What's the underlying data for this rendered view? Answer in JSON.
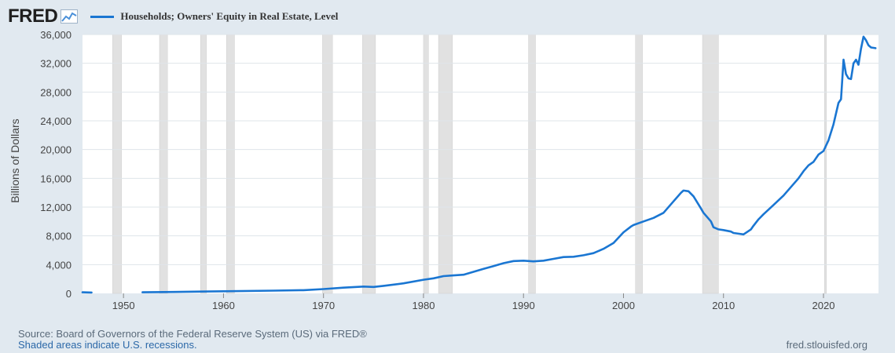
{
  "header": {
    "logo_text": "FRED",
    "logo_icon": "line-graph-icon",
    "series_label": "Households; Owners' Equity in Real Estate, Level"
  },
  "footer": {
    "source": "Source: Board of Governors of the Federal Reserve System (US) via FRED®",
    "recession_note": "Shaded areas indicate U.S. recessions.",
    "url": "fred.stlouisfed.org"
  },
  "colors": {
    "line": "#1a76d2",
    "plot_bg": "#ffffff",
    "recession": "#e1e1e1",
    "grid": "#dfe5ea"
  },
  "chart_data": {
    "type": "line",
    "title": "",
    "xlabel": "",
    "ylabel": "Billions of Dollars",
    "xlim": [
      1945.9,
      2025.5
    ],
    "ylim": [
      0,
      36000
    ],
    "y_ticks": [
      0,
      4000,
      8000,
      12000,
      16000,
      20000,
      24000,
      28000,
      32000,
      36000
    ],
    "y_tick_labels": [
      "0",
      "4,000",
      "8,000",
      "12,000",
      "16,000",
      "20,000",
      "24,000",
      "28,000",
      "32,000",
      "36,000"
    ],
    "x_ticks": [
      1950,
      1960,
      1970,
      1980,
      1990,
      2000,
      2010,
      2020
    ],
    "x_tick_labels": [
      "1950",
      "1960",
      "1970",
      "1980",
      "1990",
      "2000",
      "2010",
      "2020"
    ],
    "grid": true,
    "recessions": [
      [
        1948.9,
        1949.8
      ],
      [
        1953.6,
        1954.4
      ],
      [
        1957.7,
        1958.3
      ],
      [
        1960.3,
        1961.1
      ],
      [
        1969.9,
        1970.9
      ],
      [
        1973.9,
        1975.2
      ],
      [
        1980.0,
        1980.5
      ],
      [
        1981.5,
        1982.9
      ],
      [
        1990.5,
        1991.2
      ],
      [
        2001.2,
        2001.9
      ],
      [
        2007.9,
        2009.5
      ],
      [
        2020.1,
        2020.3
      ]
    ],
    "series": [
      {
        "name": "Households; Owners' Equity in Real Estate, Level",
        "segments": [
          {
            "x": [
              1945.9,
              1946.8
            ],
            "y": [
              150,
              120
            ]
          },
          {
            "x": [
              1951.9,
              1955,
              1960,
              1965,
              1968,
              1970,
              1972,
              1974,
              1975,
              1976,
              1978,
              1980,
              1981,
              1982,
              1983,
              1984,
              1985,
              1986,
              1987,
              1988,
              1989,
              1990,
              1991,
              1992,
              1993,
              1994,
              1995,
              1996,
              1997,
              1998,
              1999,
              2000,
              2000.75,
              2001,
              2002,
              2003,
              2004,
              2005,
              2005.75,
              2006,
              2006.5,
              2007,
              2007.75,
              2008,
              2008.75,
              2009,
              2009.5,
              2010,
              2010.75,
              2011,
              2011.5,
              2012,
              2012.75,
              2013,
              2013.5,
              2014,
              2015,
              2016,
              2017,
              2017.5,
              2018,
              2018.5,
              2019,
              2019.5,
              2020,
              2020.5,
              2021,
              2021.5,
              2021.75,
              2022,
              2022.25,
              2022.5,
              2022.75,
              2023,
              2023.25,
              2023.5,
              2023.75,
              2024,
              2024.25,
              2024.5,
              2024.75,
              2025.2
            ],
            "y": [
              150,
              200,
              300,
              380,
              450,
              600,
              800,
              950,
              900,
              1050,
              1400,
              1900,
              2100,
              2400,
              2500,
              2600,
              3000,
              3400,
              3800,
              4200,
              4500,
              4550,
              4450,
              4550,
              4800,
              5050,
              5100,
              5300,
              5600,
              6200,
              7000,
              8500,
              9300,
              9500,
              10000,
              10500,
              11200,
              12800,
              14000,
              14300,
              14200,
              13500,
              11800,
              11200,
              10000,
              9200,
              8900,
              8800,
              8600,
              8400,
              8300,
              8200,
              8900,
              9400,
              10300,
              11000,
              12300,
              13600,
              15200,
              16000,
              17000,
              17800,
              18300,
              19300,
              19800,
              21300,
              23500,
              26500,
              27000,
              32500,
              30500,
              29900,
              29800,
              32000,
              32500,
              31800,
              34000,
              35700,
              35200,
              34500,
              34200,
              34100
            ]
          }
        ]
      }
    ]
  }
}
